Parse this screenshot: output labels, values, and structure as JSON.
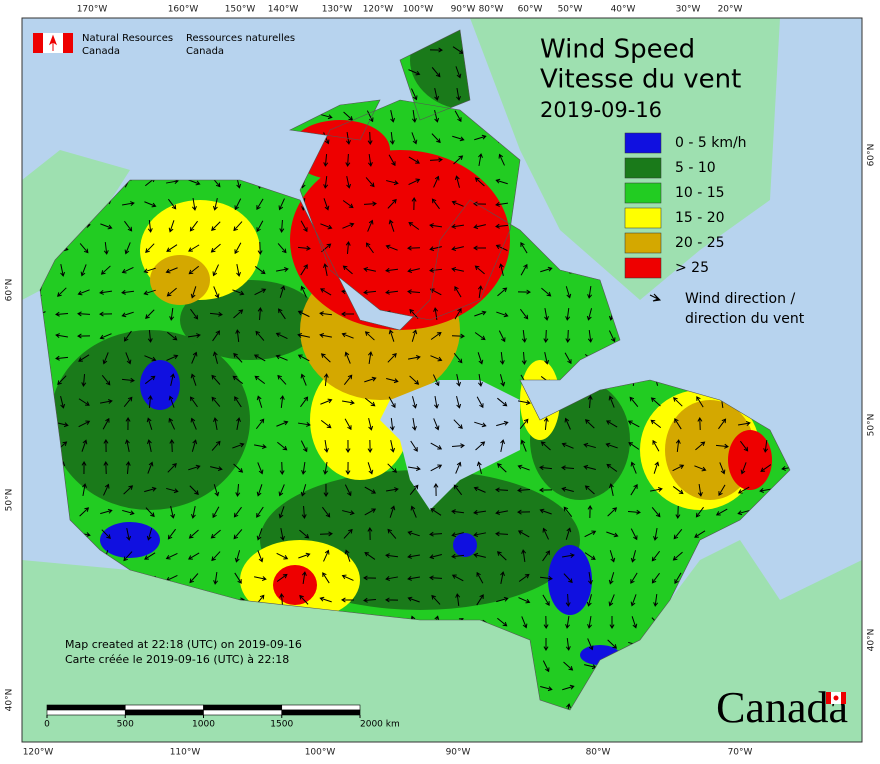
{
  "header": {
    "agency_en": "Natural Resources",
    "agency_en_2": "Canada",
    "agency_fr": "Ressources naturelles",
    "agency_fr_2": "Canada"
  },
  "title": {
    "line1": "Wind Speed",
    "line2": "Vitesse du vent",
    "date": "2019-09-16"
  },
  "legend": {
    "items": [
      {
        "label": "0 - 5 km/h",
        "color": "#1010e0"
      },
      {
        "label": "5 - 10",
        "color": "#1a7a1a"
      },
      {
        "label": "10 - 15",
        "color": "#22cc22"
      },
      {
        "label": "15 - 20",
        "color": "#ffff00"
      },
      {
        "label": "20 - 25",
        "color": "#d4a800"
      },
      {
        "label": "> 25",
        "color": "#ee0000"
      }
    ],
    "direction_en": "Wind direction /",
    "direction_fr": "direction du vent"
  },
  "graticule": {
    "top": [
      "170°W",
      "160°W",
      "150°W",
      "140°W",
      "130°W",
      "120°W",
      "100°W",
      "90°W",
      "80°W",
      "60°W",
      "50°W",
      "40°W",
      "30°W",
      "20°W"
    ],
    "bottom": [
      "120°W",
      "110°W",
      "100°W",
      "90°W",
      "80°W",
      "70°W"
    ],
    "left": [
      "60°N",
      "50°N",
      "40°N"
    ],
    "right": [
      "60°N",
      "50°N",
      "40°N"
    ]
  },
  "credits": {
    "en": "Map created at 22:18 (UTC) on 2019-09-16",
    "fr": "Carte créée le 2019-09-16 (UTC) à 22:18"
  },
  "scale": {
    "ticks": [
      0,
      500,
      1000,
      1500,
      {
        "value": 2000,
        "label": "2000 km"
      }
    ]
  },
  "wordmark": "Canada"
}
